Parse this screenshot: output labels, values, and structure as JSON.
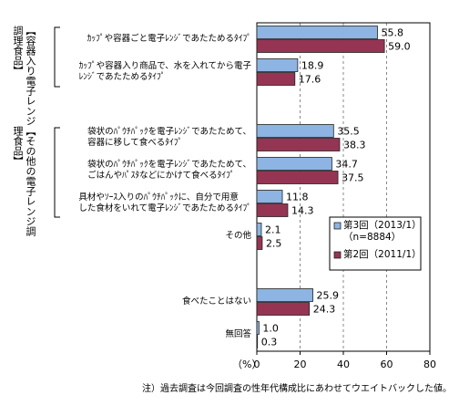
{
  "chart_data": {
    "type": "hbar",
    "categories": [
      "ｶｯﾌﾟや容器ごと電子ﾚﾝｼﾞであたためるﾀｲﾌﾟ",
      "ｶｯﾌﾟや容器入り商品で、水を入れてから電子\nﾚﾝｼﾞであたためるﾀｲﾌﾟ",
      null,
      "袋状のﾊﾟｳﾁﾊﾟｯｸを電子ﾚﾝｼﾞであたためて、\n容器に移して食べるﾀｲﾌﾟ",
      "袋状のﾊﾟｳﾁﾊﾟｯｸを電子ﾚﾝｼﾞであたためて、\nごはんやﾊﾟｽﾀなどにかけて食べるﾀｲﾌﾟ",
      "具材やｿｰｽ入りのﾊﾟｳﾁﾊﾟｯｸに、自分で用意\nした食材をいれて電子ﾚﾝｼﾞであたためるﾀｲﾌﾟ",
      "その他",
      null,
      "食べたことはない",
      "無回答"
    ],
    "groups": [
      "【容器入り電子レンジ調理食品】",
      "【その他の電子レンジ調理食品】"
    ],
    "series": [
      {
        "name": "第3回（2013/1）\n（n=8884）",
        "color": "#8db4e2",
        "values": [
          55.8,
          18.9,
          null,
          35.5,
          34.7,
          11.8,
          2.1,
          null,
          25.9,
          1.0
        ],
        "value_labels": [
          "55.8",
          "18.9",
          null,
          "35.5",
          "34.7",
          "11.8",
          "2.1",
          null,
          "25.9",
          "1.0"
        ]
      },
      {
        "name": "第2回（2011/1）",
        "color": "#953553",
        "values": [
          59.0,
          17.6,
          null,
          38.3,
          37.5,
          14.3,
          2.5,
          null,
          24.3,
          0.3
        ],
        "value_labels": [
          "59.0",
          "17.6",
          null,
          "38.3",
          "37.5",
          "14.3",
          "2.5",
          null,
          "24.3",
          "0.3"
        ]
      }
    ],
    "xlim": [
      0,
      80
    ],
    "xticks": [
      0,
      20,
      40,
      60,
      80
    ],
    "xlabel": "（%）",
    "grid": true,
    "note": "注）過去調査は今回調査の性年代構成比にあわせてウエイトバックした値。"
  }
}
